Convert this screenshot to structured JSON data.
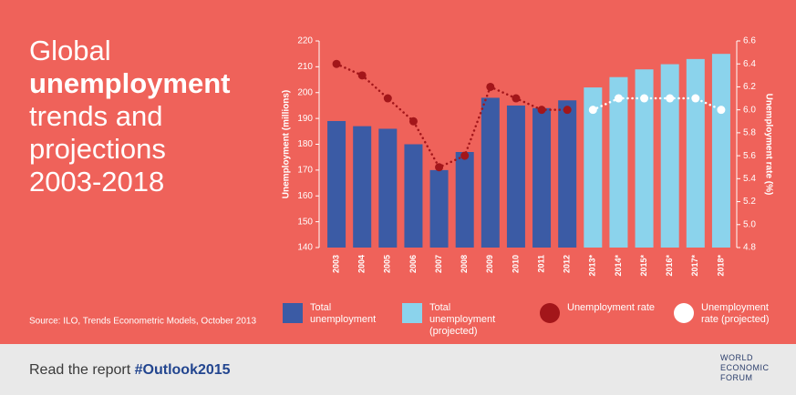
{
  "title_lines": [
    "Global",
    "unemployment",
    "trends and",
    "projections",
    "2003-2018"
  ],
  "source": "Source: ILO, Trends Econometric Models, October 2013",
  "footer": {
    "text": "Read the report",
    "hashtag": "#Outlook2015"
  },
  "logo": {
    "lines": [
      "WORLD",
      "ECONOMIC",
      "FORUM"
    ]
  },
  "chart_data": {
    "type": "bar-line",
    "categories": [
      "2003",
      "2004",
      "2005",
      "2006",
      "2007",
      "2008",
      "2009",
      "2010",
      "2011",
      "2012",
      "2013*",
      "2014*",
      "2015*",
      "2016*",
      "2017*",
      "2018*"
    ],
    "y_label": "Unemployment (millions)",
    "y2_label": "Unemployment rate (%)",
    "ylim": [
      140,
      220
    ],
    "yticks": [
      140,
      150,
      160,
      170,
      180,
      190,
      200,
      210,
      220
    ],
    "y2lim": [
      4.8,
      6.6
    ],
    "y2ticks": [
      4.8,
      {
        "value": 5,
        "label": "5.0"
      },
      5.2,
      5.4,
      5.6,
      5.8,
      {
        "value": 6,
        "label": "6.0"
      },
      6.2,
      6.4,
      6.6
    ],
    "grid": false,
    "series": [
      {
        "name": "Total unemployment",
        "type": "bar",
        "color": "#3b5ba5",
        "values": [
          189,
          187,
          186,
          180,
          170,
          177,
          198,
          195,
          194,
          197,
          null,
          null,
          null,
          null,
          null,
          null
        ]
      },
      {
        "name": "Total unemployment (projected)",
        "type": "bar",
        "color": "#8bd3ec",
        "values": [
          null,
          null,
          null,
          null,
          null,
          null,
          null,
          null,
          null,
          null,
          202,
          206,
          209,
          211,
          213,
          215
        ]
      },
      {
        "name": "Unemployment rate",
        "type": "line",
        "axis": "y2",
        "color": "#a3161a",
        "values": [
          6.4,
          6.3,
          6.1,
          5.9,
          5.5,
          5.6,
          6.2,
          6.1,
          6.0,
          6.0,
          null,
          null,
          null,
          null,
          null,
          null
        ]
      },
      {
        "name": "Unemployment rate (projected)",
        "type": "line",
        "axis": "y2",
        "color": "#ffffff",
        "values": [
          null,
          null,
          null,
          null,
          null,
          null,
          null,
          null,
          null,
          null,
          6.0,
          6.1,
          6.1,
          6.1,
          6.1,
          6.0
        ]
      }
    ]
  }
}
